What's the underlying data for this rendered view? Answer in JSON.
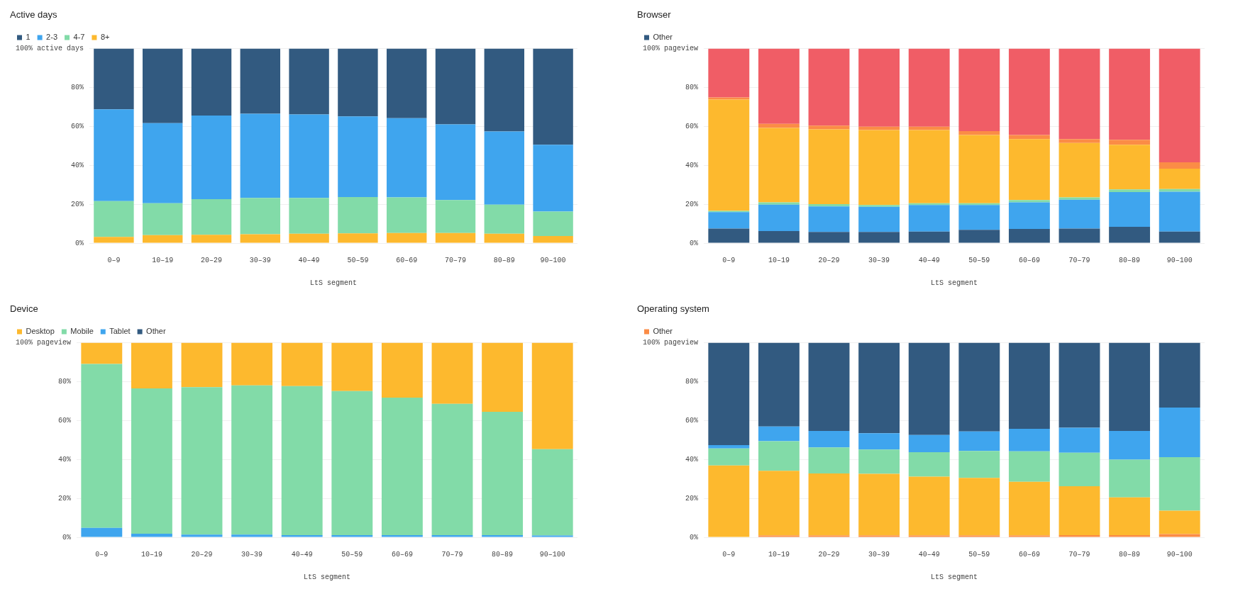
{
  "chart_data": [
    {
      "type": "bar",
      "title": "Active days",
      "xlabel": "LtS segment",
      "stacked": true,
      "grid": "y",
      "legend": "top left",
      "ylim": [
        0,
        100
      ],
      "yticks": [
        {
          "value": 0,
          "label": "0%"
        },
        {
          "value": 20,
          "label": "20%"
        },
        {
          "value": 40,
          "label": "40%"
        },
        {
          "value": 60,
          "label": "60%"
        },
        {
          "value": 80,
          "label": "80%"
        },
        {
          "value": 100,
          "label": "100% active days"
        }
      ],
      "categories": [
        "0–9",
        "10–19",
        "20–29",
        "30–39",
        "40–49",
        "50–59",
        "60–69",
        "70–79",
        "80–89",
        "90–100"
      ],
      "series": [
        {
          "name": "8+",
          "color": "#fdb92e",
          "values": [
            3.2,
            4.1,
            4.3,
            4.6,
            4.8,
            5.0,
            5.2,
            5.2,
            4.8,
            3.6
          ]
        },
        {
          "name": "4-7",
          "color": "#82dba8",
          "values": [
            18.4,
            16.4,
            18.3,
            18.6,
            18.4,
            18.7,
            18.3,
            16.9,
            15.0,
            12.6
          ]
        },
        {
          "name": "2-3",
          "color": "#3fa5ee",
          "values": [
            47.2,
            41.2,
            43.0,
            43.3,
            42.9,
            41.4,
            40.7,
            38.9,
            37.6,
            34.4
          ]
        },
        {
          "name": "1",
          "color": "#325a80",
          "values": [
            31.2,
            38.3,
            34.4,
            33.5,
            33.9,
            34.9,
            35.8,
            39.0,
            42.6,
            49.4
          ]
        }
      ]
    },
    {
      "type": "bar",
      "title": "Browser",
      "xlabel": "LtS segment",
      "stacked": true,
      "grid": "y",
      "legend": "top left",
      "ylim": [
        0,
        100
      ],
      "yticks": [
        {
          "value": 0,
          "label": "0%"
        },
        {
          "value": 20,
          "label": "20%"
        },
        {
          "value": 40,
          "label": "40%"
        },
        {
          "value": 60,
          "label": "60%"
        },
        {
          "value": 80,
          "label": "80%"
        },
        {
          "value": 100,
          "label": "100% pageview"
        }
      ],
      "categories": [
        "0–9",
        "10–19",
        "20–29",
        "30–39",
        "40–49",
        "50–59",
        "60–69",
        "70–79",
        "80–89",
        "90–100"
      ],
      "series": [
        {
          "name": "Other",
          "color": "#325a80",
          "values": [
            7.5,
            6.2,
            5.7,
            5.7,
            5.9,
            6.8,
            7.3,
            7.5,
            8.4,
            5.9
          ]
        },
        {
          "color": "#3fa5ee",
          "values": [
            8.4,
            13.6,
            13.2,
            13.0,
            13.7,
            12.8,
            13.7,
            14.8,
            17.8,
            20.5
          ]
        },
        {
          "color": "#82dba8",
          "values": [
            0.7,
            1.2,
            1.1,
            0.9,
            0.9,
            0.9,
            1.1,
            1.2,
            1.4,
            1.4
          ]
        },
        {
          "color": "#fdb92e",
          "values": [
            57.2,
            38.2,
            38.5,
            38.5,
            37.6,
            35.1,
            31.4,
            28.0,
            23.0,
            10.5
          ]
        },
        {
          "color": "#fb8c46",
          "values": [
            1.1,
            2.1,
            1.9,
            1.8,
            1.8,
            2.0,
            2.1,
            2.0,
            2.5,
            3.2
          ]
        },
        {
          "color": "#f05d66",
          "values": [
            25.1,
            38.7,
            39.6,
            40.1,
            40.1,
            42.4,
            44.4,
            46.5,
            46.9,
            58.5
          ]
        }
      ]
    },
    {
      "type": "bar",
      "title": "Device",
      "xlabel": "LtS segment",
      "stacked": true,
      "grid": "y",
      "legend": "top left",
      "ylim": [
        0,
        100
      ],
      "yticks": [
        {
          "value": 0,
          "label": "0%"
        },
        {
          "value": 20,
          "label": "20%"
        },
        {
          "value": 40,
          "label": "40%"
        },
        {
          "value": 60,
          "label": "60%"
        },
        {
          "value": 80,
          "label": "80%"
        },
        {
          "value": 100,
          "label": "100% pageview"
        }
      ],
      "categories": [
        "0–9",
        "10–19",
        "20–29",
        "30–39",
        "40–49",
        "50–59",
        "60–69",
        "70–79",
        "80–89",
        "90–100"
      ],
      "series": [
        {
          "name": "Other",
          "color": "#325a80",
          "values": [
            0,
            0,
            0,
            0,
            0,
            0,
            0,
            0,
            0,
            0
          ]
        },
        {
          "name": "Tablet",
          "color": "#3fa5ee",
          "values": [
            4.8,
            1.8,
            1.4,
            1.4,
            1.1,
            1.1,
            1.1,
            1.1,
            1.1,
            0.9
          ]
        },
        {
          "name": "Mobile",
          "color": "#82dba8",
          "values": [
            84.3,
            74.7,
            75.8,
            76.7,
            76.6,
            74.1,
            70.7,
            67.5,
            63.4,
            44.4
          ]
        },
        {
          "name": "Desktop",
          "color": "#fdb92e",
          "values": [
            10.9,
            23.5,
            22.8,
            21.9,
            22.3,
            24.8,
            28.2,
            31.4,
            35.5,
            54.7
          ]
        }
      ]
    },
    {
      "type": "bar",
      "title": "Operating system",
      "xlabel": "LtS segment",
      "stacked": true,
      "grid": "y",
      "legend": "top left",
      "ylim": [
        0,
        100
      ],
      "yticks": [
        {
          "value": 0,
          "label": "0%"
        },
        {
          "value": 20,
          "label": "20%"
        },
        {
          "value": 40,
          "label": "40%"
        },
        {
          "value": 60,
          "label": "60%"
        },
        {
          "value": 80,
          "label": "80%"
        },
        {
          "value": 100,
          "label": "100% pageview"
        }
      ],
      "categories": [
        "0–9",
        "10–19",
        "20–29",
        "30–39",
        "40–49",
        "50–59",
        "60–69",
        "70–79",
        "80–89",
        "90–100"
      ],
      "series": [
        {
          "name": "Other",
          "color": "#fb8c46",
          "values": [
            0,
            0.9,
            0.9,
            0.9,
            0.9,
            0.9,
            0.9,
            1.1,
            1.1,
            1.6
          ]
        },
        {
          "color": "#fdb92e",
          "values": [
            36.9,
            33.3,
            31.9,
            31.7,
            30.3,
            29.6,
            27.6,
            25.1,
            19.4,
            12.1
          ]
        },
        {
          "color": "#82dba8",
          "values": [
            8.7,
            15.2,
            13.4,
            12.5,
            12.5,
            13.9,
            15.7,
            17.3,
            19.4,
            27.5
          ]
        },
        {
          "color": "#3fa5ee",
          "values": [
            1.8,
            7.5,
            8.5,
            8.4,
            8.9,
            10.0,
            11.6,
            12.8,
            14.8,
            25.5
          ]
        },
        {
          "color": "#325a80",
          "values": [
            52.6,
            43.1,
            45.3,
            46.5,
            47.4,
            45.6,
            44.2,
            43.7,
            45.3,
            33.3
          ]
        }
      ]
    }
  ]
}
